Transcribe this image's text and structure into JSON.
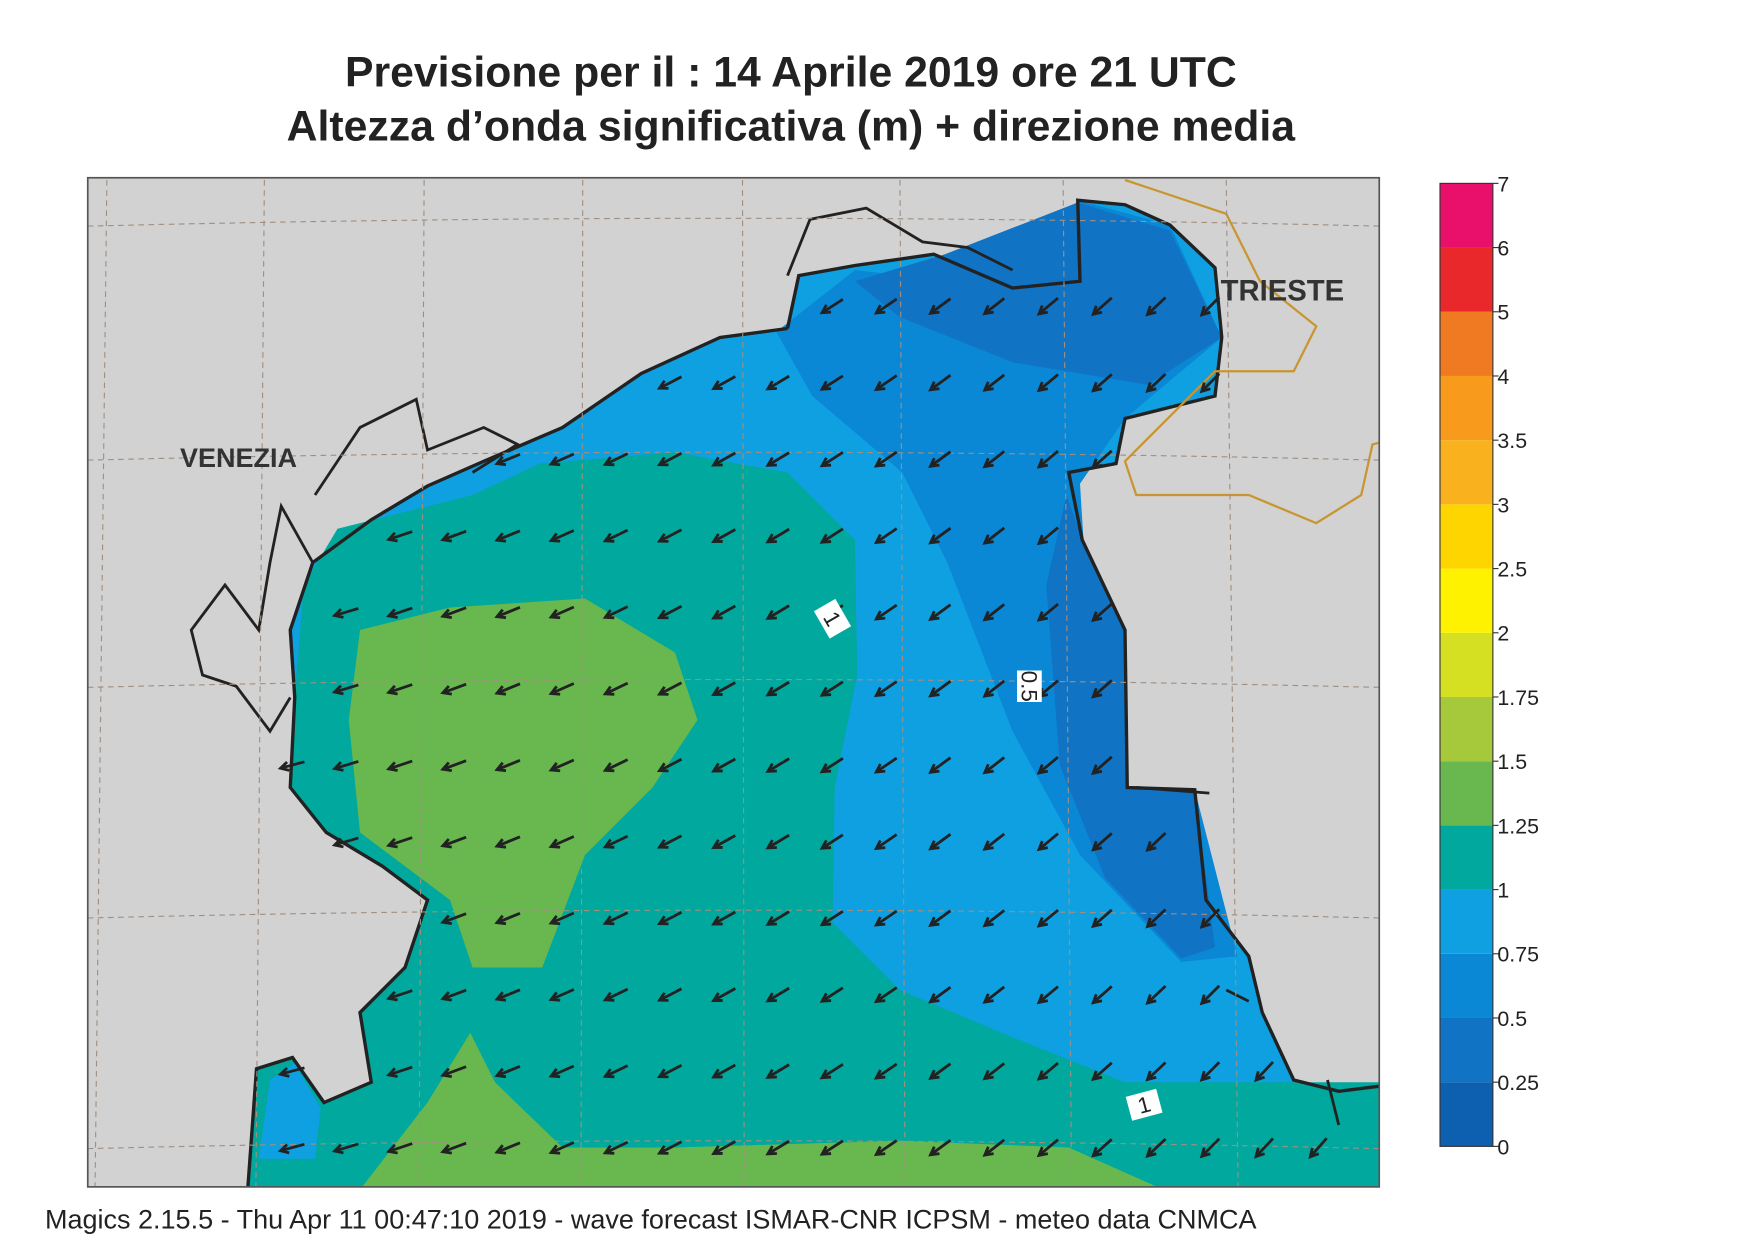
{
  "header": {
    "title_line1": "Previsione per il  :  14   Aprile  2019   ore 21 UTC",
    "title_line2": "Altezza d’onda significativa (m) + direzione media"
  },
  "map": {
    "places": [
      "VENEZIA",
      "TRIESTE"
    ],
    "contour_labels": [
      0.5,
      1,
      1
    ]
  },
  "colorbar": {
    "levels": [
      0,
      0.25,
      0.5,
      0.75,
      1,
      1.25,
      1.5,
      1.75,
      2,
      2.5,
      3,
      3.5,
      4,
      5,
      6,
      7
    ],
    "colors": [
      "#0d5fb0",
      "#1173c4",
      "#0a88d6",
      "#0fa0e2",
      "#00a89e",
      "#68b84f",
      "#a6c93c",
      "#d4e021",
      "#fff200",
      "#ffd500",
      "#f9b21e",
      "#f89a1c",
      "#f07a22",
      "#e8282a",
      "#e8106a"
    ]
  },
  "footer": "Magics 2.15.5 - Thu Apr 11 00:47:10 2019 - wave forecast  ISMAR-CNR  ICPSM - meteo data   CNMCA"
}
